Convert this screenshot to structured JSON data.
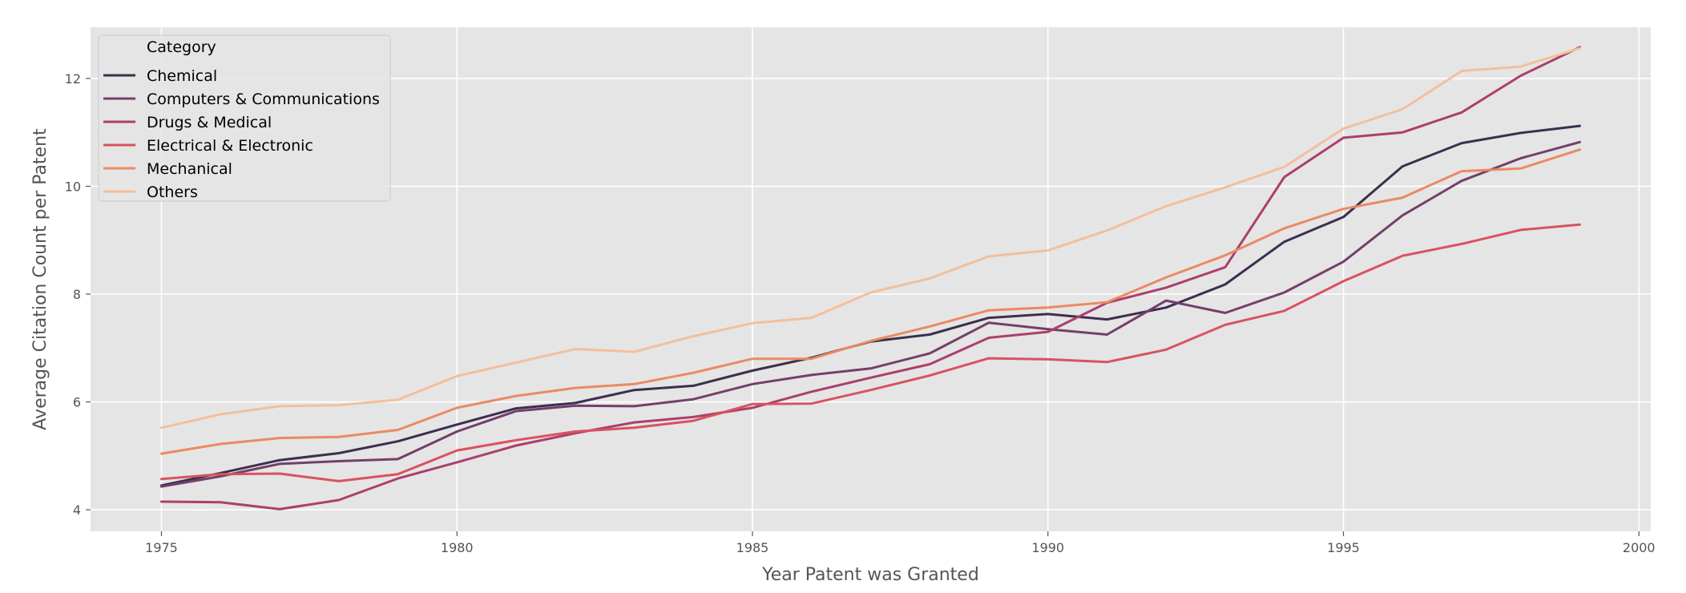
{
  "chart_data": {
    "type": "line",
    "title": "",
    "xlabel": "Year Patent was Granted",
    "ylabel": "Average Citation Count per Patent",
    "xlim": [
      1973.8,
      2000.2
    ],
    "ylim": [
      3.6,
      12.95
    ],
    "xticks": [
      1975,
      1980,
      1985,
      1990,
      1995,
      2000
    ],
    "yticks": [
      4,
      6,
      8,
      10,
      12
    ],
    "grid": true,
    "legend": {
      "title": "Category",
      "placement": "top-left"
    },
    "x": [
      1975,
      1976,
      1977,
      1978,
      1979,
      1980,
      1981,
      1982,
      1983,
      1984,
      1985,
      1986,
      1987,
      1988,
      1989,
      1990,
      1991,
      1992,
      1993,
      1994,
      1995,
      1996,
      1997,
      1998,
      1999
    ],
    "series": [
      {
        "name": "Chemical",
        "color": "#3d2e4f",
        "values": [
          4.45,
          4.68,
          4.92,
          5.05,
          5.27,
          5.58,
          5.88,
          5.98,
          6.22,
          6.3,
          6.58,
          6.82,
          7.12,
          7.25,
          7.56,
          7.63,
          7.53,
          7.75,
          8.18,
          8.97,
          9.43,
          10.37,
          10.8,
          10.99,
          11.12
        ]
      },
      {
        "name": "Computers & Communications",
        "color": "#743f6a",
        "values": [
          4.43,
          4.62,
          4.85,
          4.9,
          4.94,
          5.45,
          5.83,
          5.93,
          5.92,
          6.05,
          6.33,
          6.5,
          6.62,
          6.9,
          7.47,
          7.35,
          7.25,
          7.88,
          7.65,
          8.03,
          8.6,
          9.46,
          10.1,
          10.52,
          10.82
        ]
      },
      {
        "name": "Drugs & Medical",
        "color": "#ab3f6c",
        "values": [
          4.15,
          4.14,
          4.01,
          4.18,
          4.58,
          4.88,
          5.19,
          5.42,
          5.62,
          5.72,
          5.89,
          6.19,
          6.45,
          6.7,
          7.19,
          7.3,
          7.84,
          8.12,
          8.5,
          10.17,
          10.9,
          11.0,
          11.37,
          12.05,
          12.58
        ]
      },
      {
        "name": "Electrical & Electronic",
        "color": "#d9525f",
        "values": [
          4.57,
          4.66,
          4.67,
          4.53,
          4.66,
          5.1,
          5.29,
          5.45,
          5.52,
          5.65,
          5.96,
          5.97,
          6.22,
          6.49,
          6.81,
          6.79,
          6.74,
          6.97,
          7.43,
          7.69,
          8.24,
          8.71,
          8.93,
          9.19,
          9.29
        ]
      },
      {
        "name": "Mechanical",
        "color": "#eb8a62",
        "values": [
          5.04,
          5.22,
          5.33,
          5.35,
          5.48,
          5.89,
          6.11,
          6.26,
          6.33,
          6.54,
          6.8,
          6.8,
          7.13,
          7.4,
          7.7,
          7.75,
          7.85,
          8.31,
          8.72,
          9.22,
          9.58,
          9.79,
          10.28,
          10.33,
          10.68
        ]
      },
      {
        "name": "Others",
        "color": "#f3bf9c",
        "values": [
          5.52,
          5.77,
          5.92,
          5.94,
          6.04,
          6.48,
          6.73,
          6.98,
          6.93,
          7.22,
          7.46,
          7.56,
          8.03,
          8.29,
          8.7,
          8.81,
          9.18,
          9.63,
          9.98,
          10.36,
          11.07,
          11.43,
          12.14,
          12.22,
          12.56
        ]
      }
    ]
  },
  "style": {
    "plot_bg": "#e5e5e5",
    "grid_color": "#ffffff",
    "tick_color": "#555555"
  }
}
